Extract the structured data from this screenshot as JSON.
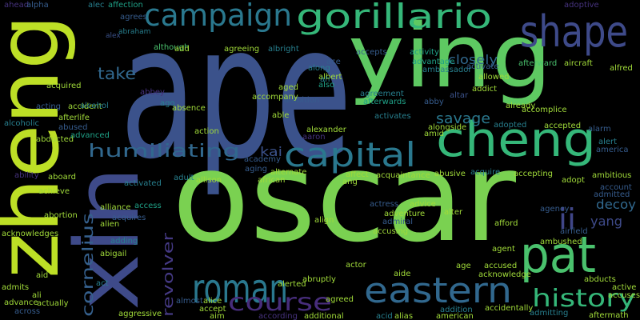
{
  "words": [
    {
      "text": "ape",
      "color": "#3b528b"
    },
    {
      "text": "oscar",
      "color": "#7ad151"
    },
    {
      "text": "ying",
      "color": "#5ec962"
    },
    {
      "text": "zheng",
      "color": "#bddf26"
    },
    {
      "text": "xin",
      "color": "#3e4a89"
    },
    {
      "text": "cheng",
      "color": "#35b779"
    },
    {
      "text": "pat",
      "color": "#4ac16d"
    },
    {
      "text": "shape",
      "color": "#3e4a89"
    },
    {
      "text": "campaign",
      "color": "#2a788e"
    },
    {
      "text": "gorillario",
      "color": "#35b779"
    },
    {
      "text": "capital",
      "color": "#2a788e"
    },
    {
      "text": "roman",
      "color": "#2a788e"
    },
    {
      "text": "eastern",
      "color": "#31688e"
    },
    {
      "text": "course",
      "color": "#472d7b"
    },
    {
      "text": "history",
      "color": "#35b779"
    },
    {
      "text": "humiliating",
      "color": "#31688e"
    },
    {
      "text": "cornelius",
      "color": "#35608d"
    },
    {
      "text": "revolver",
      "color": "#443983"
    },
    {
      "text": "take",
      "color": "#31688e"
    },
    {
      "text": "savage",
      "color": "#2a788e"
    },
    {
      "text": "kai",
      "color": "#3b528b"
    },
    {
      "text": "ii",
      "color": "#404688"
    },
    {
      "text": "yang",
      "color": "#3e4a89"
    },
    {
      "text": "decoy",
      "color": "#31688e"
    },
    {
      "text": "closely",
      "color": "#31688e"
    },
    {
      "text": "ahead",
      "color": "#46327e"
    },
    {
      "text": "alpha",
      "color": "#365c8d"
    },
    {
      "text": "alec",
      "color": "#277f8e"
    },
    {
      "text": "affection",
      "color": "#1fa187"
    },
    {
      "text": "agrees",
      "color": "#365c8d"
    },
    {
      "text": "alex",
      "color": "#3b528b"
    },
    {
      "text": "abraham",
      "color": "#277f8e"
    },
    {
      "text": "although",
      "color": "#4ac16d"
    },
    {
      "text": "agreeing",
      "color": "#a0da39"
    },
    {
      "text": "albright",
      "color": "#277f8e"
    },
    {
      "text": "accepts",
      "color": "#365c8d"
    },
    {
      "text": "activity",
      "color": "#1fa187"
    },
    {
      "text": "adoptive",
      "color": "#46327e"
    },
    {
      "text": "aircraft",
      "color": "#a0da39"
    },
    {
      "text": "alfred",
      "color": "#a0da39"
    },
    {
      "text": "afterward",
      "color": "#4ac16d"
    },
    {
      "text": "activate",
      "color": "#365c8d"
    },
    {
      "text": "advantage",
      "color": "#1fa187"
    },
    {
      "text": "ambassador",
      "color": "#277f8e"
    },
    {
      "text": "ace",
      "color": "#365c8d"
    },
    {
      "text": "along",
      "color": "#277f8e"
    },
    {
      "text": "also",
      "color": "#1fa187"
    },
    {
      "text": "albert",
      "color": "#a0da39"
    },
    {
      "text": "agreement",
      "color": "#277f8e"
    },
    {
      "text": "allowed",
      "color": "#a0da39"
    },
    {
      "text": "addict",
      "color": "#a0da39"
    },
    {
      "text": "add",
      "color": "#a0da39"
    },
    {
      "text": "acquired",
      "color": "#a0da39"
    },
    {
      "text": "acting",
      "color": "#365c8d"
    },
    {
      "text": "accident",
      "color": "#a0da39"
    },
    {
      "text": "abducted",
      "color": "#a0da39"
    },
    {
      "text": "alcohol",
      "color": "#277f8e"
    },
    {
      "text": "alcoholic",
      "color": "#277f8e"
    },
    {
      "text": "afterlife",
      "color": "#a0da39"
    },
    {
      "text": "abused",
      "color": "#365c8d"
    },
    {
      "text": "advanced",
      "color": "#1fa187"
    },
    {
      "text": "abbey",
      "color": "#46327e"
    },
    {
      "text": "aged",
      "color": "#a0da39"
    },
    {
      "text": "ah",
      "color": "#277f8e"
    },
    {
      "text": "afterwards",
      "color": "#1fa187"
    },
    {
      "text": "abby",
      "color": "#365c8d"
    },
    {
      "text": "altar",
      "color": "#3b528b"
    },
    {
      "text": "already",
      "color": "#a0da39"
    },
    {
      "text": "accomplice",
      "color": "#a0da39"
    },
    {
      "text": "ambition",
      "color": "#365c8d"
    },
    {
      "text": "able",
      "color": "#a0da39"
    },
    {
      "text": "activates",
      "color": "#277f8e"
    },
    {
      "text": "alongside",
      "color": "#a0da39"
    },
    {
      "text": "amid",
      "color": "#a0da39"
    },
    {
      "text": "adopted",
      "color": "#277f8e"
    },
    {
      "text": "accepted",
      "color": "#a0da39"
    },
    {
      "text": "alarm",
      "color": "#365c8d"
    },
    {
      "text": "alert",
      "color": "#277f8e"
    },
    {
      "text": "america",
      "color": "#365c8d"
    },
    {
      "text": "absence",
      "color": "#a0da39"
    },
    {
      "text": "ago",
      "color": "#277f8e"
    },
    {
      "text": "accompany",
      "color": "#a0da39"
    },
    {
      "text": "action",
      "color": "#a0da39"
    },
    {
      "text": "alexander",
      "color": "#a0da39"
    },
    {
      "text": "aaron",
      "color": "#46327e"
    },
    {
      "text": "affect",
      "color": "#a0da39"
    },
    {
      "text": "acquaintance",
      "color": "#a0da39"
    },
    {
      "text": "abusive",
      "color": "#a0da39"
    },
    {
      "text": "acquire",
      "color": "#277f8e"
    },
    {
      "text": "accepting",
      "color": "#a0da39"
    },
    {
      "text": "adopt",
      "color": "#a0da39"
    },
    {
      "text": "ambitious",
      "color": "#a0da39"
    },
    {
      "text": "account",
      "color": "#365c8d"
    },
    {
      "text": "admitted",
      "color": "#365c8d"
    },
    {
      "text": "academy",
      "color": "#365c8d"
    },
    {
      "text": "aging",
      "color": "#365c8d"
    },
    {
      "text": "alternate",
      "color": "#a0da39"
    },
    {
      "text": "african",
      "color": "#a0da39"
    },
    {
      "text": "allison",
      "color": "#a0da39"
    },
    {
      "text": "adult",
      "color": "#277f8e"
    },
    {
      "text": "ability",
      "color": "#46327e"
    },
    {
      "text": "aboard",
      "color": "#a0da39"
    },
    {
      "text": "activated",
      "color": "#277f8e"
    },
    {
      "text": "achieve",
      "color": "#a0da39"
    },
    {
      "text": "abortion",
      "color": "#a0da39"
    },
    {
      "text": "alliance",
      "color": "#a0da39"
    },
    {
      "text": "acquires",
      "color": "#365c8d"
    },
    {
      "text": "access",
      "color": "#1fa187"
    },
    {
      "text": "alien",
      "color": "#a0da39"
    },
    {
      "text": "ang",
      "color": "#a0da39"
    },
    {
      "text": "actress",
      "color": "#365c8d"
    },
    {
      "text": "advice",
      "color": "#a0da39"
    },
    {
      "text": "alter",
      "color": "#a0da39"
    },
    {
      "text": "adventure",
      "color": "#a0da39"
    },
    {
      "text": "align",
      "color": "#a0da39"
    },
    {
      "text": "admiral",
      "color": "#365c8d"
    },
    {
      "text": "accusing",
      "color": "#a0da39"
    },
    {
      "text": "afford",
      "color": "#a0da39"
    },
    {
      "text": "agency",
      "color": "#365c8d"
    },
    {
      "text": "acknowledges",
      "color": "#a0da39"
    },
    {
      "text": "adding",
      "color": "#277f8e"
    },
    {
      "text": "abigail",
      "color": "#a0da39"
    },
    {
      "text": "airfield",
      "color": "#365c8d"
    },
    {
      "text": "ambushed",
      "color": "#a0da39"
    },
    {
      "text": "agent",
      "color": "#a0da39"
    },
    {
      "text": "accused",
      "color": "#a0da39"
    },
    {
      "text": "actor",
      "color": "#a0da39"
    },
    {
      "text": "acknowledge",
      "color": "#a0da39"
    },
    {
      "text": "aid",
      "color": "#a0da39"
    },
    {
      "text": "admits",
      "color": "#a0da39"
    },
    {
      "text": "ali",
      "color": "#a0da39"
    },
    {
      "text": "advance",
      "color": "#a0da39"
    },
    {
      "text": "actually",
      "color": "#a0da39"
    },
    {
      "text": "across",
      "color": "#365c8d"
    },
    {
      "text": "act",
      "color": "#277f8e"
    },
    {
      "text": "aggressive",
      "color": "#a0da39"
    },
    {
      "text": "aim",
      "color": "#a0da39"
    },
    {
      "text": "according",
      "color": "#46327e"
    },
    {
      "text": "additional",
      "color": "#a0da39"
    },
    {
      "text": "abruptly",
      "color": "#a0da39"
    },
    {
      "text": "alerted",
      "color": "#a0da39"
    },
    {
      "text": "agreed",
      "color": "#a0da39"
    },
    {
      "text": "aide",
      "color": "#a0da39"
    },
    {
      "text": "age",
      "color": "#a0da39"
    },
    {
      "text": "acid",
      "color": "#277f8e"
    },
    {
      "text": "alias",
      "color": "#a0da39"
    },
    {
      "text": "american",
      "color": "#a0da39"
    },
    {
      "text": "addition",
      "color": "#277f8e"
    },
    {
      "text": "accidentally",
      "color": "#a0da39"
    },
    {
      "text": "admitting",
      "color": "#277f8e"
    },
    {
      "text": "aftermath",
      "color": "#a0da39"
    },
    {
      "text": "abducts",
      "color": "#a0da39"
    },
    {
      "text": "accuses",
      "color": "#a0da39"
    },
    {
      "text": "active",
      "color": "#a0da39"
    },
    {
      "text": "accept",
      "color": "#a0da39"
    },
    {
      "text": "almost",
      "color": "#365c8d"
    },
    {
      "text": "alice",
      "color": "#a0da39"
    }
  ]
}
